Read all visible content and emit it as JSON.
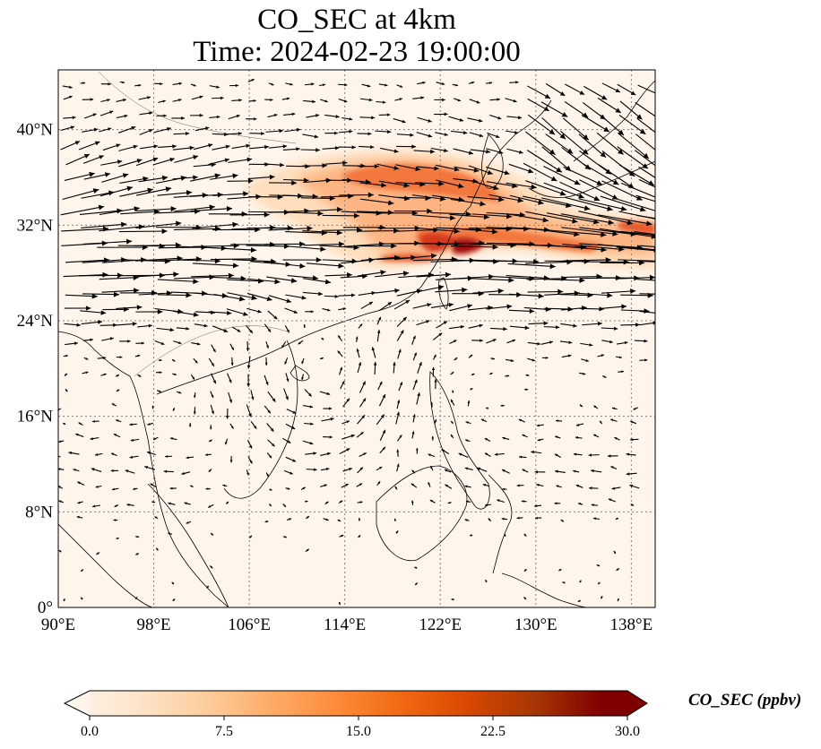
{
  "figure": {
    "title_line1": "CO_SEC at 4km",
    "title_line2": "Time: 2024-02-23 19:00:00"
  },
  "map": {
    "lon_range": [
      90,
      140
    ],
    "lat_range": [
      0,
      45
    ],
    "lon_ticks": [
      {
        "value": 90,
        "label": "90°E"
      },
      {
        "value": 98,
        "label": "98°E"
      },
      {
        "value": 106,
        "label": "106°E"
      },
      {
        "value": 114,
        "label": "114°E"
      },
      {
        "value": 122,
        "label": "122°E"
      },
      {
        "value": 130,
        "label": "130°E"
      },
      {
        "value": 138,
        "label": "138°E"
      }
    ],
    "lat_ticks": [
      {
        "value": 0,
        "label": "0°"
      },
      {
        "value": 8,
        "label": "8°N"
      },
      {
        "value": 16,
        "label": "16°N"
      },
      {
        "value": 24,
        "label": "24°N"
      },
      {
        "value": 32,
        "label": "32°N"
      },
      {
        "value": 40,
        "label": "40°N"
      }
    ],
    "gridlines": "dotted",
    "wind_vectors": "black arrows",
    "plume_colors": [
      "#fef3e6",
      "#fdd9b3",
      "#fdb07c",
      "#f2773c",
      "#d6371c",
      "#a30b0b"
    ]
  },
  "colorbar": {
    "label": "CO_SEC (ppbv)",
    "range": [
      0,
      30
    ],
    "extend": "both",
    "ticks": [
      {
        "value": 0,
        "label": "0.0"
      },
      {
        "value": 7.5,
        "label": "7.5"
      },
      {
        "value": 15,
        "label": "15.0"
      },
      {
        "value": 22.5,
        "label": "22.5"
      },
      {
        "value": 30,
        "label": "30.0"
      }
    ],
    "colors": [
      "#fff5eb",
      "#fee6ce",
      "#fdd0a2",
      "#fdae6b",
      "#fd8d3c",
      "#f16913",
      "#d94801",
      "#a63603",
      "#7f0000"
    ]
  }
}
